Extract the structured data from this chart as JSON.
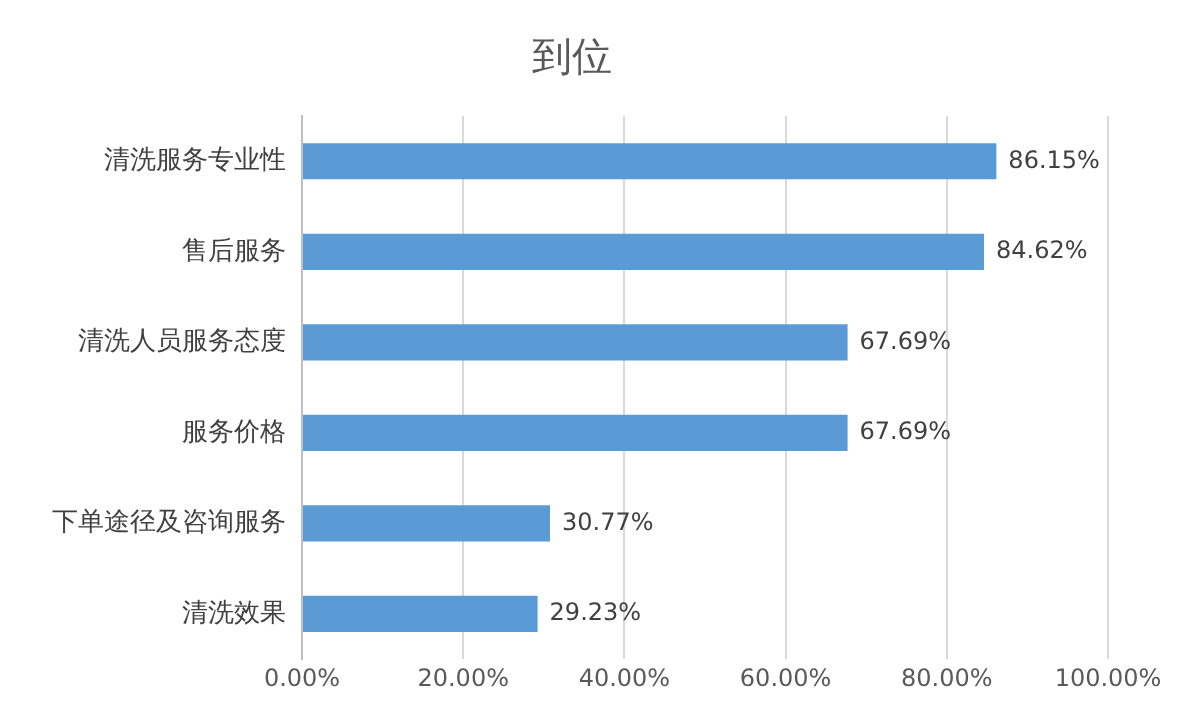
{
  "chart_data": {
    "type": "bar",
    "title": "到位",
    "orientation": "horizontal",
    "categories": [
      "清洗服务专业性",
      "售后服务",
      "清洗人员服务态度",
      "服务价格",
      "下单途径及咨询服务",
      "清洗效果"
    ],
    "values": [
      86.15,
      84.62,
      67.69,
      67.69,
      30.77,
      29.23
    ],
    "value_labels": [
      "86.15%",
      "84.62%",
      "67.69%",
      "67.69%",
      "30.77%",
      "29.23%"
    ],
    "color": "#5b9bd5",
    "xlim": [
      0,
      100
    ],
    "xticks": [
      {
        "value": 0,
        "label": "0.00%"
      },
      {
        "value": 20,
        "label": "20.00%"
      },
      {
        "value": 40,
        "label": "40.00%"
      },
      {
        "value": 60,
        "label": "60.00%"
      },
      {
        "value": 80,
        "label": "80.00%"
      },
      {
        "value": 100,
        "label": "100.00%"
      }
    ],
    "grid": "x",
    "legend": false
  }
}
